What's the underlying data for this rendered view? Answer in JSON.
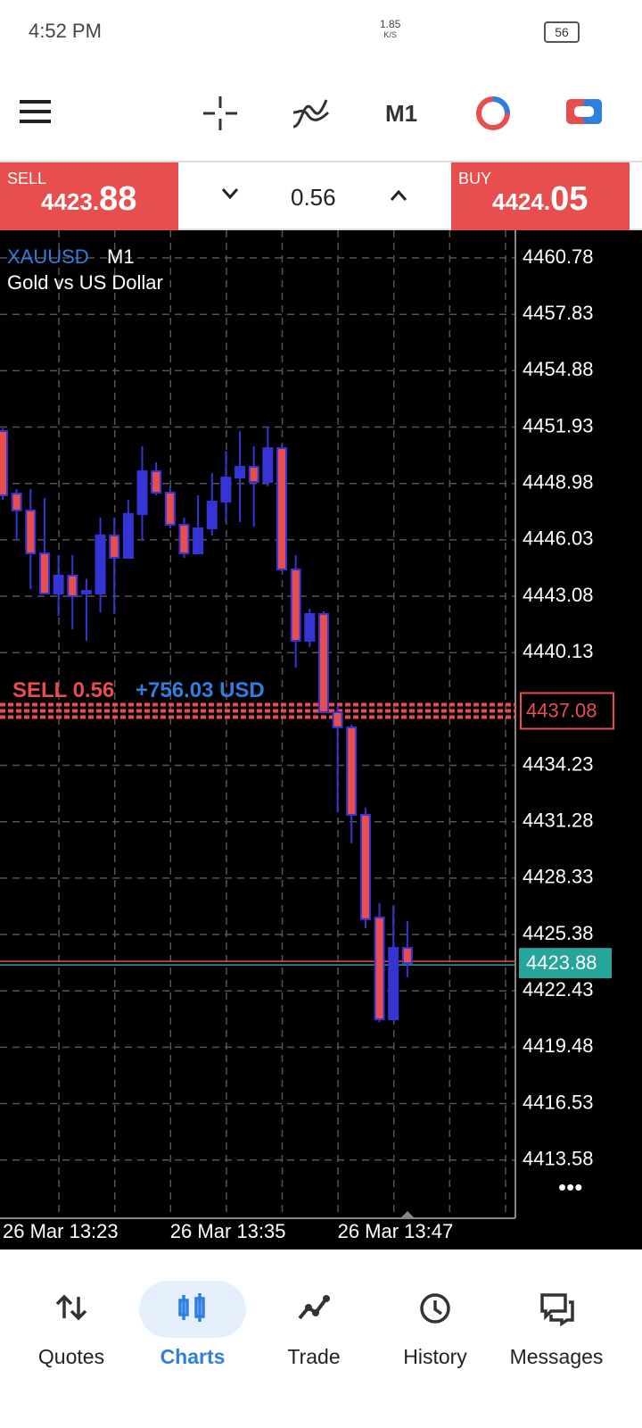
{
  "status_bar": {
    "time": "4:52 PM",
    "speed": "1.85",
    "speed_unit": "K/S",
    "battery": "56"
  },
  "toolbar": {
    "timeframe": "M1"
  },
  "trade_bar": {
    "sell": {
      "label": "SELL",
      "price_small": "4423.",
      "price_big": "88"
    },
    "lot": "0.56",
    "buy": {
      "label": "BUY",
      "price_small": "4424.",
      "price_big": "05"
    }
  },
  "chart_data": {
    "type": "candlestick",
    "symbol": "XAUUSD",
    "timeframe": "M1",
    "description": "Gold vs US Dollar",
    "categories": [
      "26 Mar 13:23",
      null,
      null,
      null,
      null,
      null,
      null,
      null,
      null,
      null,
      null,
      null,
      "26 Mar 13:35",
      null,
      null,
      null,
      null,
      null,
      null,
      null,
      null,
      null,
      null,
      null,
      "26 Mar 13:47",
      null,
      null,
      null,
      null,
      null
    ],
    "open": [
      4451.72,
      4448.45,
      4447.57,
      4445.32,
      4443.22,
      4444.16,
      4443.22,
      4443.22,
      4446.26,
      4445.09,
      4447.38,
      4449.62,
      4448.5,
      4446.82,
      4445.32,
      4446.63,
      4448.03,
      4449.29,
      4449.85,
      4449.06,
      4450.83,
      4444.48,
      4440.75,
      4442.15,
      4437.01,
      4436.22,
      4431.64,
      4426.27,
      4420.94,
      4424.68
    ],
    "high": [
      4451.86,
      4448.69,
      4448.69,
      4448.22,
      4445.23,
      4445.23,
      4443.99,
      4447.19,
      4447.19,
      4448.12,
      4450.93,
      4450.09,
      4448.83,
      4447.19,
      4448.36,
      4449.53,
      4450.69,
      4451.72,
      4450.93,
      4451.96,
      4451.02,
      4445.23,
      4442.43,
      4442.29,
      4437.38,
      4436.36,
      4432.02,
      4427.02,
      4426.88,
      4426.08
    ],
    "low": [
      4448.12,
      4446.02,
      4443.45,
      4443.22,
      4442.05,
      4441.35,
      4440.75,
      4442.24,
      4442.15,
      4445.09,
      4446.02,
      4448.36,
      4446.63,
      4445.09,
      4445.32,
      4446.26,
      4446.96,
      4446.96,
      4446.72,
      4448.83,
      4444.39,
      4439.34,
      4440.42,
      4437.01,
      4431.78,
      4430.15,
      4425.71,
      4420.8,
      4420.94,
      4423.14
    ],
    "close": [
      4448.36,
      4447.57,
      4445.32,
      4443.22,
      4444.16,
      4443.08,
      4443.36,
      4446.26,
      4445.09,
      4447.38,
      4449.62,
      4448.5,
      4446.82,
      4445.32,
      4446.63,
      4448.03,
      4449.29,
      4449.85,
      4449.06,
      4450.83,
      4444.48,
      4440.75,
      4442.15,
      4437.01,
      4436.22,
      4431.64,
      4426.18,
      4420.94,
      4424.68,
      4423.88
    ],
    "up_color": "#3535d6",
    "down_color": "#e84e4e",
    "ylim": [
      4410.53,
      4462.23
    ],
    "yticks": [
      4460.78,
      4457.83,
      4454.88,
      4451.93,
      4448.98,
      4446.03,
      4443.08,
      4440.13,
      4434.23,
      4431.28,
      4428.33,
      4425.38,
      4422.43,
      4419.48,
      4416.53,
      4413.58
    ],
    "grid": true,
    "position": {
      "label": "SELL 0.56",
      "profit": "+756.03 USD",
      "price": 4437.08,
      "color": "#e84e4e"
    },
    "bid": {
      "price": 4423.88,
      "color": "#26a69a"
    }
  },
  "bottom_nav": {
    "items": [
      "Quotes",
      "Charts",
      "Trade",
      "History",
      "Messages"
    ],
    "active": 1
  }
}
